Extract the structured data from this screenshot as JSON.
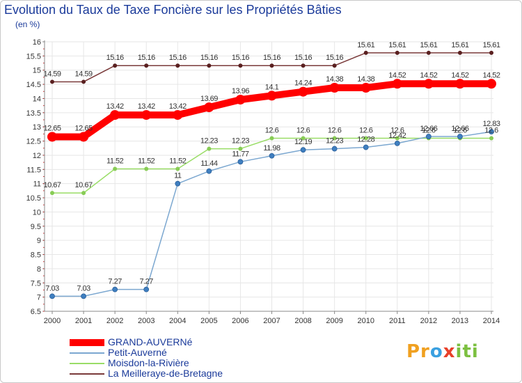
{
  "header": {
    "title": "Evolution du Taux de Taxe Foncière sur les Propriétés Bâties",
    "subtitle": "(en %)"
  },
  "logo": {
    "text": "Proxiti",
    "parts": [
      "Pr",
      "o",
      "x",
      "iti"
    ]
  },
  "chart_data": {
    "type": "line",
    "title": "Evolution du Taux de Taxe Foncière sur les Propriétés Bâties",
    "ylabel": "(en %)",
    "xlabel": "",
    "ylim": [
      6.5,
      16
    ],
    "yticks": [
      "6.5",
      "7",
      "7.5",
      "8",
      "8.5",
      "9",
      "9.5",
      "10",
      "10.5",
      "11",
      "11.5",
      "12",
      "12.5",
      "13",
      "13.5",
      "14",
      "14.5",
      "15",
      "15.5",
      "16"
    ],
    "x": [
      "2000",
      "2001",
      "2002",
      "2003",
      "2004",
      "2005",
      "2006",
      "2007",
      "2008",
      "2009",
      "2010",
      "2011",
      "2012",
      "2013",
      "2014"
    ],
    "grid": true,
    "legend_position": "bottom-left",
    "series": [
      {
        "name": "GRAND-AUVERNé",
        "color": "#ff0000",
        "values": [
          12.65,
          12.65,
          13.42,
          13.42,
          13.42,
          13.69,
          13.96,
          14.1,
          14.24,
          14.38,
          14.38,
          14.52,
          14.52,
          14.52,
          14.52
        ],
        "labels": [
          "12.65",
          "12.65",
          "13.42",
          "13.42",
          "13.42",
          "13.69",
          "13.96",
          "14.1",
          "14.24",
          "14.38",
          "14.38",
          "14.52",
          "14.52",
          "14.52",
          "14.52"
        ]
      },
      {
        "name": "Petit-Auverné",
        "color": "#7ba7d0",
        "values": [
          7.03,
          7.03,
          7.27,
          7.27,
          11,
          11.44,
          11.77,
          11.98,
          12.19,
          12.23,
          12.28,
          12.42,
          12.66,
          12.66,
          12.83
        ],
        "labels": [
          "7.03",
          "7.03",
          "7.27",
          "7.27",
          "11",
          "11.44",
          "11.77",
          "11.98",
          "12.19",
          "12.23",
          "12.28",
          "12.42",
          "12.66",
          "12.66",
          "12.83"
        ]
      },
      {
        "name": "Moisdon-la-Rivière",
        "color": "#99dd66",
        "values": [
          10.67,
          10.67,
          11.52,
          11.52,
          11.52,
          12.23,
          12.23,
          12.6,
          12.6,
          12.6,
          12.6,
          12.6,
          12.6,
          12.6,
          12.6
        ],
        "labels": [
          "10.67",
          "10.67",
          "11.52",
          "11.52",
          "11.52",
          "12.23",
          "12.23",
          "12.6",
          "12.6",
          "12.6",
          "12.6",
          "12.6",
          "12.6",
          "12.6",
          "12.6"
        ]
      },
      {
        "name": "La Meilleraye-de-Bretagne",
        "color": "#7a3a3a",
        "values": [
          14.59,
          14.59,
          15.16,
          15.16,
          15.16,
          15.16,
          15.16,
          15.16,
          15.16,
          15.16,
          15.61,
          15.61,
          15.61,
          15.61,
          15.61
        ],
        "labels": [
          "14.59",
          "14.59",
          "15.16",
          "15.16",
          "15.16",
          "15.16",
          "15.16",
          "15.16",
          "15.16",
          "15.16",
          "15.61",
          "15.61",
          "15.61",
          "15.61",
          "15.61"
        ]
      }
    ]
  }
}
